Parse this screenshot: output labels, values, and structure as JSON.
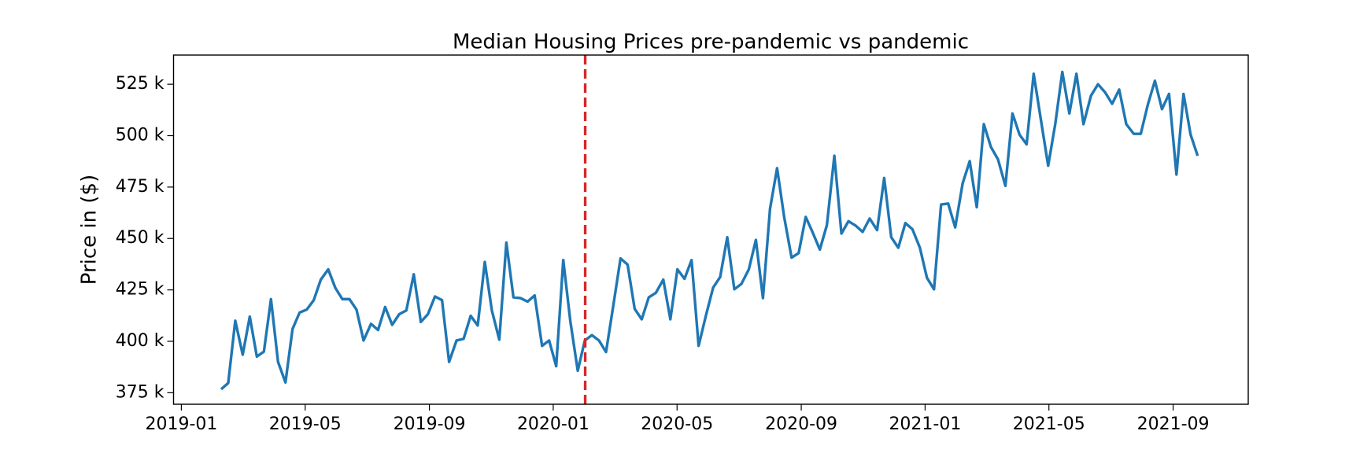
{
  "chart_data": {
    "type": "line",
    "title": "Median Housing Prices pre-pandemic vs pandemic",
    "ylabel": "Price in ($)",
    "x": [
      2019.107,
      2019.126,
      2019.145,
      2019.165,
      2019.184,
      2019.203,
      2019.222,
      2019.241,
      2019.26,
      2019.28,
      2019.299,
      2019.318,
      2019.337,
      2019.356,
      2019.375,
      2019.395,
      2019.414,
      2019.433,
      2019.452,
      2019.471,
      2019.49,
      2019.51,
      2019.529,
      2019.548,
      2019.567,
      2019.586,
      2019.605,
      2019.625,
      2019.644,
      2019.663,
      2019.682,
      2019.701,
      2019.72,
      2019.74,
      2019.759,
      2019.778,
      2019.797,
      2019.816,
      2019.835,
      2019.855,
      2019.874,
      2019.893,
      2019.912,
      2019.931,
      2019.95,
      2019.97,
      2019.989,
      2020.008,
      2020.027,
      2020.046,
      2020.066,
      2020.085,
      2020.104,
      2020.123,
      2020.142,
      2020.161,
      2020.181,
      2020.2,
      2020.219,
      2020.238,
      2020.257,
      2020.276,
      2020.296,
      2020.315,
      2020.334,
      2020.353,
      2020.372,
      2020.391,
      2020.411,
      2020.43,
      2020.449,
      2020.468,
      2020.487,
      2020.506,
      2020.526,
      2020.545,
      2020.564,
      2020.583,
      2020.602,
      2020.621,
      2020.641,
      2020.66,
      2020.679,
      2020.698,
      2020.717,
      2020.736,
      2020.756,
      2020.775,
      2020.794,
      2020.813,
      2020.832,
      2020.851,
      2020.871,
      2020.89,
      2020.909,
      2020.928,
      2020.947,
      2020.966,
      2020.986,
      2021.005,
      2021.024,
      2021.043,
      2021.062,
      2021.081,
      2021.101,
      2021.12,
      2021.139,
      2021.158,
      2021.177,
      2021.196,
      2021.216,
      2021.235,
      2021.254,
      2021.273,
      2021.292,
      2021.311,
      2021.331,
      2021.35,
      2021.369,
      2021.388,
      2021.407,
      2021.426,
      2021.446,
      2021.465,
      2021.484,
      2021.503,
      2021.522,
      2021.541,
      2021.561,
      2021.58,
      2021.599,
      2021.618,
      2021.637,
      2021.656,
      2021.676,
      2021.695,
      2021.714,
      2021.733
    ],
    "series": [
      {
        "color": "#1f77b4",
        "values": [
          376700,
          379700,
          410000,
          393500,
          412000,
          392600,
          395000,
          420500,
          390000,
          380000,
          406000,
          414000,
          415400,
          420000,
          430000,
          435000,
          426000,
          420500,
          420500,
          415400,
          400400,
          408500,
          405500,
          416700,
          408000,
          413200,
          415000,
          432600,
          409400,
          413200,
          421800,
          420000,
          390000,
          400400,
          401200,
          412400,
          407700,
          438600,
          415000,
          400800,
          448000,
          421400,
          421000,
          419300,
          422300,
          397800,
          400400,
          387900,
          439500,
          409800,
          385700,
          400400,
          403000,
          400400,
          394800,
          416700,
          440300,
          437300,
          415800,
          410700,
          421400,
          423600,
          430000,
          410700,
          435000,
          430400,
          439500,
          397800,
          412800,
          426100,
          431300,
          450600,
          425300,
          427900,
          435000,
          449300,
          421000,
          464400,
          484200,
          460500,
          440700,
          442900,
          460500,
          452800,
          444600,
          456600,
          490200,
          452400,
          458400,
          456300,
          453200,
          459700,
          454100,
          479400,
          450600,
          445500,
          457500,
          454500,
          445500,
          430900,
          425300,
          466500,
          467000,
          455400,
          476800,
          487600,
          465200,
          505600,
          494500,
          488500,
          475600,
          510800,
          500500,
          495800,
          530100,
          508200,
          485400,
          505600,
          531000,
          510800,
          530100,
          505600,
          519400,
          525000,
          521100,
          515500,
          522400,
          505600,
          500900,
          500900,
          515100,
          526700,
          512900,
          520300,
          481100,
          520300,
          500500,
          490200
        ]
      }
    ],
    "reference_line": {
      "x": 2020.086,
      "color": "#d62728"
    },
    "xlim": [
      2018.979,
      2021.869
    ],
    "xticks": [
      {
        "value": 2019.0,
        "label": "2019-01"
      },
      {
        "value": 2019.333,
        "label": "2019-05"
      },
      {
        "value": 2019.667,
        "label": "2019-09"
      },
      {
        "value": 2020.0,
        "label": "2020-01"
      },
      {
        "value": 2020.333,
        "label": "2020-05"
      },
      {
        "value": 2020.667,
        "label": "2020-09"
      },
      {
        "value": 2021.0,
        "label": "2021-01"
      },
      {
        "value": 2021.333,
        "label": "2021-05"
      },
      {
        "value": 2021.667,
        "label": "2021-09"
      }
    ],
    "ylim": [
      369400,
      539200
    ],
    "yticks": [
      {
        "value": 375000,
        "label": "375 k"
      },
      {
        "value": 400000,
        "label": "400 k"
      },
      {
        "value": 425000,
        "label": "425 k"
      },
      {
        "value": 450000,
        "label": "450 k"
      },
      {
        "value": 475000,
        "label": "475 k"
      },
      {
        "value": 500000,
        "label": "500 k"
      },
      {
        "value": 525000,
        "label": "525 k"
      }
    ],
    "grid": false
  }
}
